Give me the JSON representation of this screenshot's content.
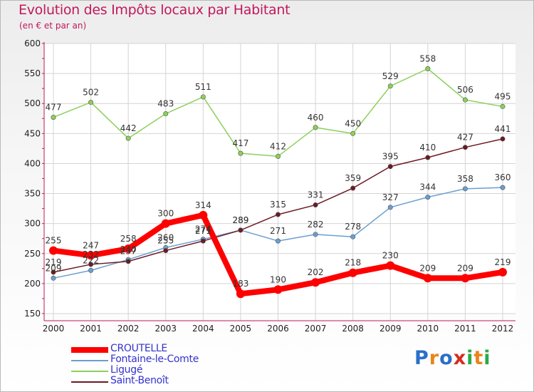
{
  "title": "Evolution des Impôts locaux par Habitant",
  "subtitle": "(en € et par an)",
  "logo": {
    "text": "Proxiti",
    "colors": [
      "#2a6fc9",
      "#e8851b",
      "#2a6fc9",
      "#d62c1f",
      "#2aa84a",
      "#e8851b",
      "#2aa84a"
    ]
  },
  "chart_data": {
    "type": "line",
    "title": "Evolution des Impôts locaux par Habitant",
    "subtitle": "(en € et par an)",
    "categories": [
      "2000",
      "2001",
      "2002",
      "2003",
      "2004",
      "2005",
      "2006",
      "2007",
      "2008",
      "2009",
      "2010",
      "2011",
      "2012"
    ],
    "ylim": [
      150,
      600
    ],
    "yticks": [
      150,
      200,
      250,
      300,
      350,
      400,
      450,
      500,
      550,
      600
    ],
    "grid": true,
    "legend_position": "bottom-left",
    "series": [
      {
        "name": "CROUTELLE",
        "color": "#ff0000",
        "emphasis": true,
        "values": [
          255,
          247,
          258,
          300,
          314,
          183,
          190,
          202,
          218,
          230,
          209,
          209,
          219
        ]
      },
      {
        "name": "Fontaine-le-Comte",
        "color": "#6a9fd1",
        "emphasis": false,
        "values": [
          209,
          222,
          240,
          260,
          274,
          289,
          271,
          282,
          278,
          327,
          344,
          358,
          360
        ]
      },
      {
        "name": "Ligugé",
        "color": "#8cd05a",
        "emphasis": false,
        "values": [
          477,
          502,
          442,
          483,
          511,
          417,
          412,
          460,
          450,
          529,
          558,
          506,
          495
        ]
      },
      {
        "name": "Saint-Benoît",
        "color": "#6b1a24",
        "emphasis": false,
        "values": [
          219,
          232,
          237,
          255,
          271,
          289,
          315,
          331,
          359,
          395,
          410,
          427,
          441
        ]
      }
    ]
  }
}
